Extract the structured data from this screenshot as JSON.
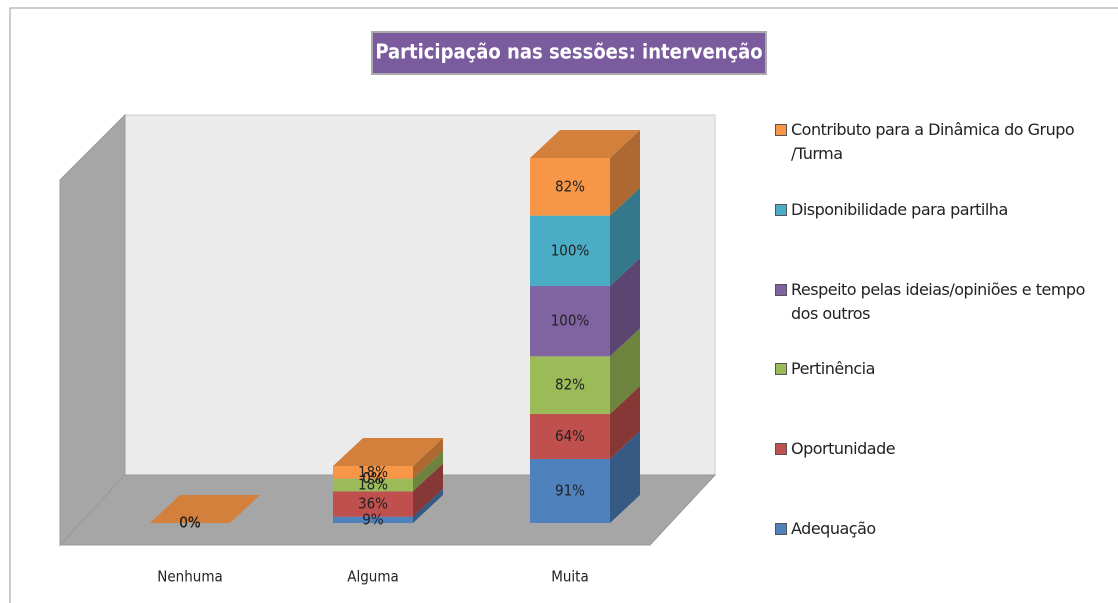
{
  "chart_data": {
    "type": "bar3d_stacked",
    "title": "Participação nas sessões: intervenção",
    "categories": [
      "Nenhuma",
      "Alguma",
      "Muita"
    ],
    "series": [
      {
        "name": "Adequação",
        "color": "#4f81bd",
        "values": [
          0,
          9,
          91
        ],
        "value_labels": [
          "0%",
          "9%",
          "91%"
        ]
      },
      {
        "name": "Oportunidade",
        "color": "#c0504d",
        "values": [
          0,
          36,
          64
        ],
        "value_labels": [
          "0%",
          "36%",
          "64%"
        ]
      },
      {
        "name": "Pertinência",
        "color": "#9bbb59",
        "values": [
          0,
          18,
          82
        ],
        "value_labels": [
          "0%",
          "18%",
          "82%"
        ]
      },
      {
        "name": "Respeito pelas ideias/opiniões e tempo dos outros",
        "color": "#8064a2",
        "values": [
          0,
          0,
          100
        ],
        "value_labels": [
          "0%",
          "0%",
          "100%"
        ]
      },
      {
        "name": "Disponibilidade para partilha",
        "color": "#4bacc6",
        "values": [
          0,
          0,
          100
        ],
        "value_labels": [
          "0%",
          "0%",
          "100%"
        ]
      },
      {
        "name": "Contributo para a Dinâmica do Grupo /Turma",
        "color": "#f79646",
        "values": [
          0,
          18,
          82
        ],
        "value_labels": [
          "0%",
          "18%",
          "82%"
        ]
      }
    ]
  }
}
